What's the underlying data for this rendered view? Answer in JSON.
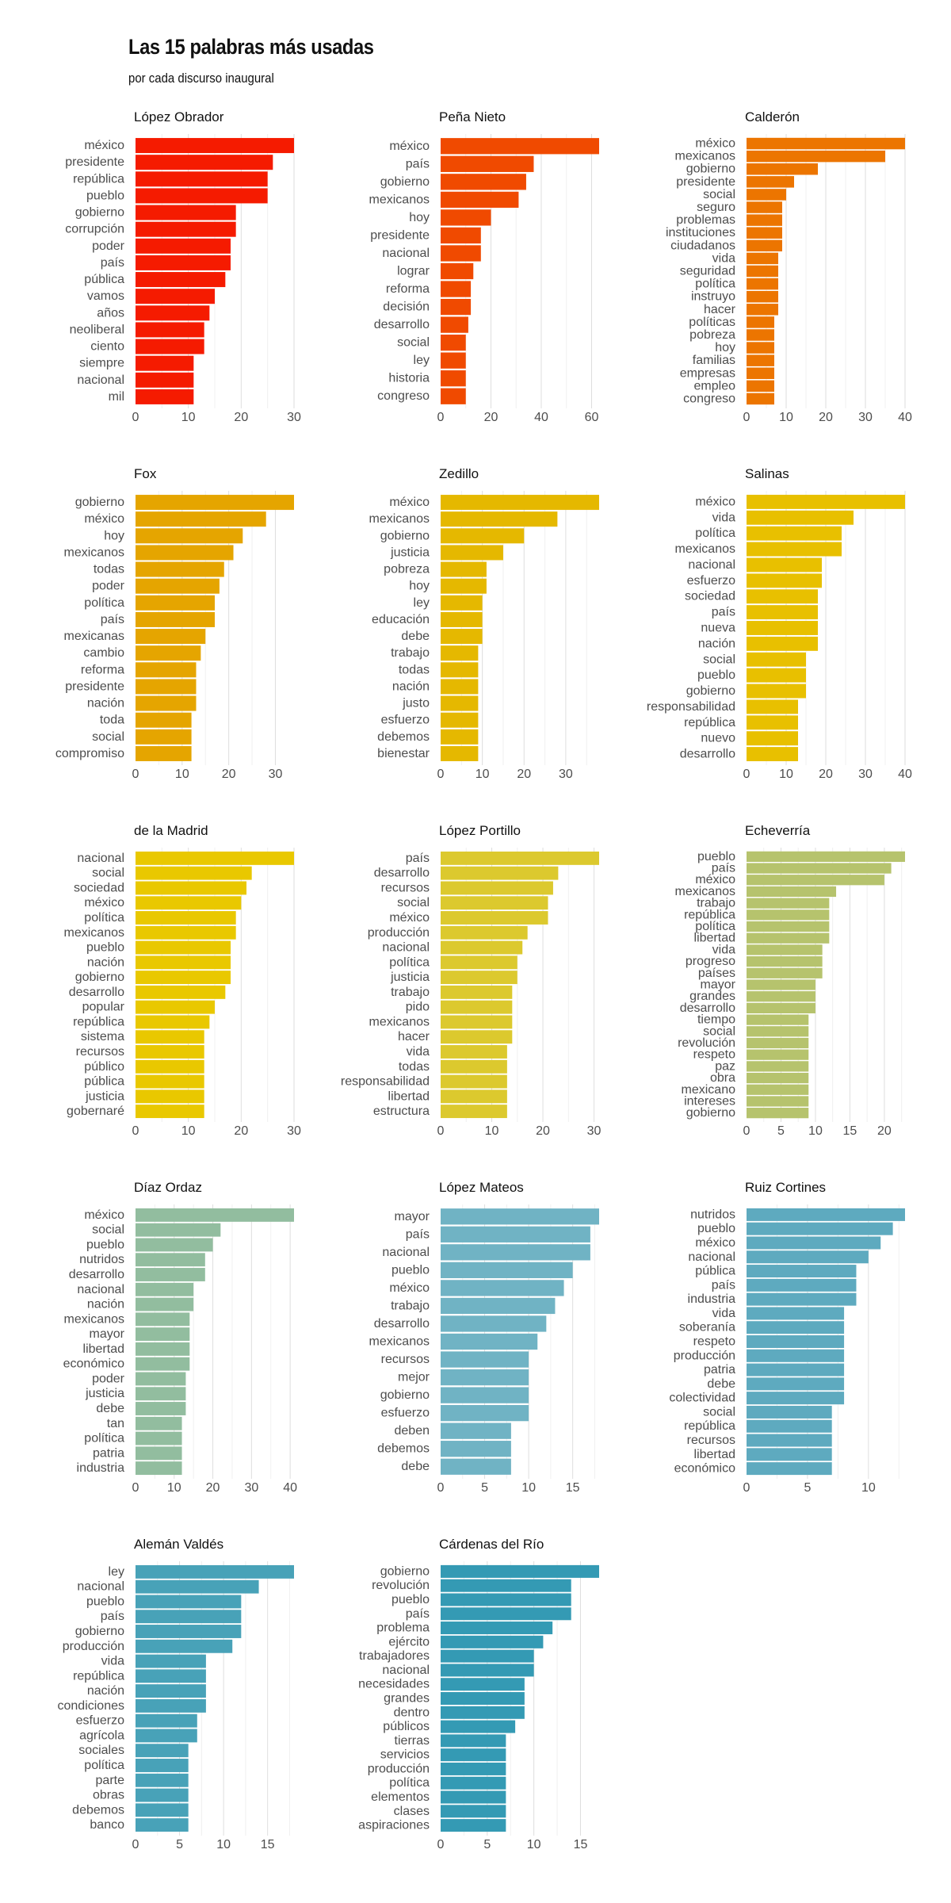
{
  "title": "Las 15 palabras más usadas",
  "subtitle": "por cada discurso inaugural",
  "chart_data": [
    {
      "type": "bar",
      "orientation": "horizontal",
      "title": "López Obrador",
      "color": "#f51b00",
      "xlim": [
        0,
        30
      ],
      "ticks": [
        0,
        10,
        20,
        30
      ],
      "categories": [
        "méxico",
        "presidente",
        "república",
        "pueblo",
        "gobierno",
        "corrupción",
        "poder",
        "país",
        "pública",
        "vamos",
        "años",
        "neoliberal",
        "ciento",
        "siempre",
        "nacional",
        "mil"
      ],
      "values": [
        30,
        26,
        25,
        25,
        19,
        19,
        18,
        18,
        17,
        15,
        14,
        13,
        13,
        11,
        11,
        11
      ]
    },
    {
      "type": "bar",
      "orientation": "horizontal",
      "title": "Peña Nieto",
      "color": "#f04a00",
      "xlim": [
        0,
        63
      ],
      "ticks": [
        0,
        20,
        40,
        60
      ],
      "categories": [
        "méxico",
        "país",
        "gobierno",
        "mexicanos",
        "hoy",
        "presidente",
        "nacional",
        "lograr",
        "reforma",
        "decisión",
        "desarrollo",
        "social",
        "ley",
        "historia",
        "congreso"
      ],
      "values": [
        63,
        37,
        34,
        31,
        20,
        16,
        16,
        13,
        12,
        12,
        11,
        10,
        10,
        10,
        10
      ]
    },
    {
      "type": "bar",
      "orientation": "horizontal",
      "title": "Calderón",
      "color": "#ec7500",
      "xlim": [
        0,
        40
      ],
      "ticks": [
        0,
        10,
        20,
        30,
        40
      ],
      "categories": [
        "méxico",
        "mexicanos",
        "gobierno",
        "presidente",
        "social",
        "seguro",
        "problemas",
        "instituciones",
        "ciudadanos",
        "vida",
        "seguridad",
        "política",
        "instruyo",
        "hacer",
        "políticas",
        "pobreza",
        "hoy",
        "familias",
        "empresas",
        "empleo",
        "congreso"
      ],
      "values": [
        40,
        35,
        18,
        12,
        10,
        9,
        9,
        9,
        9,
        8,
        8,
        8,
        8,
        8,
        7,
        7,
        7,
        7,
        7,
        7,
        7
      ]
    },
    {
      "type": "bar",
      "orientation": "horizontal",
      "title": "Fox",
      "color": "#e5a500",
      "xlim": [
        0,
        34
      ],
      "ticks": [
        0,
        10,
        20,
        30
      ],
      "categories": [
        "gobierno",
        "méxico",
        "hoy",
        "mexicanos",
        "todas",
        "poder",
        "política",
        "país",
        "mexicanas",
        "cambio",
        "reforma",
        "presidente",
        "nación",
        "toda",
        "social",
        "compromiso"
      ],
      "values": [
        34,
        28,
        23,
        21,
        19,
        18,
        17,
        17,
        15,
        14,
        13,
        13,
        13,
        12,
        12,
        12
      ]
    },
    {
      "type": "bar",
      "orientation": "horizontal",
      "title": "Zedillo",
      "color": "#e5b800",
      "xlim": [
        0,
        38
      ],
      "ticks": [
        0,
        10,
        20,
        30
      ],
      "categories": [
        "méxico",
        "mexicanos",
        "gobierno",
        "justicia",
        "pobreza",
        "hoy",
        "ley",
        "educación",
        "debe",
        "trabajo",
        "todas",
        "nación",
        "justo",
        "esfuerzo",
        "debemos",
        "bienestar"
      ],
      "values": [
        38,
        28,
        20,
        15,
        11,
        11,
        10,
        10,
        10,
        9,
        9,
        9,
        9,
        9,
        9,
        9
      ]
    },
    {
      "type": "bar",
      "orientation": "horizontal",
      "title": "Salinas",
      "color": "#e8c000",
      "xlim": [
        0,
        40
      ],
      "ticks": [
        0,
        10,
        20,
        30,
        40
      ],
      "categories": [
        "méxico",
        "vida",
        "política",
        "mexicanos",
        "nacional",
        "esfuerzo",
        "sociedad",
        "país",
        "nueva",
        "nación",
        "social",
        "pueblo",
        "gobierno",
        "responsabilidad",
        "república",
        "nuevo",
        "desarrollo"
      ],
      "values": [
        40,
        27,
        24,
        24,
        19,
        19,
        18,
        18,
        18,
        18,
        15,
        15,
        15,
        13,
        13,
        13,
        13
      ]
    },
    {
      "type": "bar",
      "orientation": "horizontal",
      "title": "de la Madrid",
      "color": "#e9c800",
      "xlim": [
        0,
        30
      ],
      "ticks": [
        0,
        10,
        20,
        30
      ],
      "categories": [
        "nacional",
        "social",
        "sociedad",
        "méxico",
        "política",
        "mexicanos",
        "pueblo",
        "nación",
        "gobierno",
        "desarrollo",
        "popular",
        "república",
        "sistema",
        "recursos",
        "público",
        "pública",
        "justicia",
        "gobernaré"
      ],
      "values": [
        30,
        22,
        21,
        20,
        19,
        19,
        18,
        18,
        18,
        17,
        15,
        14,
        13,
        13,
        13,
        13,
        13,
        13
      ]
    },
    {
      "type": "bar",
      "orientation": "horizontal",
      "title": "López Portillo",
      "color": "#dcc92e",
      "xlim": [
        0,
        31
      ],
      "ticks": [
        0,
        10,
        20,
        30
      ],
      "categories": [
        "país",
        "desarrollo",
        "recursos",
        "social",
        "méxico",
        "producción",
        "nacional",
        "política",
        "justicia",
        "trabajo",
        "pido",
        "mexicanos",
        "hacer",
        "vida",
        "todas",
        "responsabilidad",
        "libertad",
        "estructura"
      ],
      "values": [
        31,
        23,
        22,
        21,
        21,
        17,
        16,
        15,
        15,
        14,
        14,
        14,
        14,
        13,
        13,
        13,
        13,
        13
      ]
    },
    {
      "type": "bar",
      "orientation": "horizontal",
      "title": "Echeverría",
      "color": "#b6c36d",
      "xlim": [
        0,
        23
      ],
      "ticks": [
        0,
        5,
        10,
        15,
        20
      ],
      "categories": [
        "pueblo",
        "país",
        "méxico",
        "mexicanos",
        "trabajo",
        "república",
        "política",
        "libertad",
        "vida",
        "progreso",
        "países",
        "mayor",
        "grandes",
        "desarrollo",
        "tiempo",
        "social",
        "revolución",
        "respeto",
        "paz",
        "obra",
        "mexicano",
        "intereses",
        "gobierno"
      ],
      "values": [
        23,
        21,
        20,
        13,
        12,
        12,
        12,
        12,
        11,
        11,
        11,
        10,
        10,
        10,
        9,
        9,
        9,
        9,
        9,
        9,
        9,
        9,
        9
      ]
    },
    {
      "type": "bar",
      "orientation": "horizontal",
      "title": "Díaz Ordaz",
      "color": "#92bd9f",
      "xlim": [
        0,
        41
      ],
      "ticks": [
        0,
        10,
        20,
        30,
        40
      ],
      "categories": [
        "méxico",
        "social",
        "pueblo",
        "nutridos",
        "desarrollo",
        "nacional",
        "nación",
        "mexicanos",
        "mayor",
        "libertad",
        "económico",
        "poder",
        "justicia",
        "debe",
        "tan",
        "política",
        "patria",
        "industria"
      ],
      "values": [
        41,
        22,
        20,
        18,
        18,
        15,
        15,
        14,
        14,
        14,
        14,
        13,
        13,
        13,
        12,
        12,
        12,
        12
      ]
    },
    {
      "type": "bar",
      "orientation": "horizontal",
      "title": "López Mateos",
      "color": "#70b3c4",
      "xlim": [
        0,
        18
      ],
      "ticks": [
        0,
        5,
        10,
        15
      ],
      "categories": [
        "mayor",
        "país",
        "nacional",
        "pueblo",
        "méxico",
        "trabajo",
        "desarrollo",
        "mexicanos",
        "recursos",
        "mejor",
        "gobierno",
        "esfuerzo",
        "deben",
        "debemos",
        "debe"
      ],
      "values": [
        18,
        17,
        17,
        15,
        14,
        13,
        12,
        11,
        10,
        10,
        10,
        10,
        8,
        8,
        8
      ]
    },
    {
      "type": "bar",
      "orientation": "horizontal",
      "title": "Ruiz Cortines",
      "color": "#5eaabf",
      "xlim": [
        0,
        13
      ],
      "ticks": [
        0,
        5,
        10
      ],
      "categories": [
        "nutridos",
        "pueblo",
        "méxico",
        "nacional",
        "pública",
        "país",
        "industria",
        "vida",
        "soberanía",
        "respeto",
        "producción",
        "patria",
        "debe",
        "colectividad",
        "social",
        "república",
        "recursos",
        "libertad",
        "económico"
      ],
      "values": [
        13,
        12,
        11,
        10,
        9,
        9,
        9,
        8,
        8,
        8,
        8,
        8,
        8,
        8,
        7,
        7,
        7,
        7,
        7
      ]
    },
    {
      "type": "bar",
      "orientation": "horizontal",
      "title": "Alemán Valdés",
      "color": "#48a2b8",
      "xlim": [
        0,
        18
      ],
      "ticks": [
        0,
        5,
        10,
        15
      ],
      "categories": [
        "ley",
        "nacional",
        "pueblo",
        "país",
        "gobierno",
        "producción",
        "vida",
        "república",
        "nación",
        "condiciones",
        "esfuerzo",
        "agrícola",
        "sociales",
        "política",
        "parte",
        "obras",
        "debemos",
        "banco"
      ],
      "values": [
        18,
        14,
        12,
        12,
        12,
        11,
        8,
        8,
        8,
        8,
        7,
        7,
        6,
        6,
        6,
        6,
        6,
        6
      ]
    },
    {
      "type": "bar",
      "orientation": "horizontal",
      "title": "Cárdenas del Río",
      "color": "#349ab4",
      "xlim": [
        0,
        17
      ],
      "ticks": [
        0,
        5,
        10,
        15
      ],
      "categories": [
        "gobierno",
        "revolución",
        "pueblo",
        "país",
        "problema",
        "ejército",
        "trabajadores",
        "nacional",
        "necesidades",
        "grandes",
        "dentro",
        "públicos",
        "tierras",
        "servicios",
        "producción",
        "política",
        "elementos",
        "clases",
        "aspiraciones"
      ],
      "values": [
        17,
        14,
        14,
        14,
        12,
        11,
        10,
        10,
        9,
        9,
        9,
        8,
        7,
        7,
        7,
        7,
        7,
        7,
        7
      ]
    }
  ]
}
